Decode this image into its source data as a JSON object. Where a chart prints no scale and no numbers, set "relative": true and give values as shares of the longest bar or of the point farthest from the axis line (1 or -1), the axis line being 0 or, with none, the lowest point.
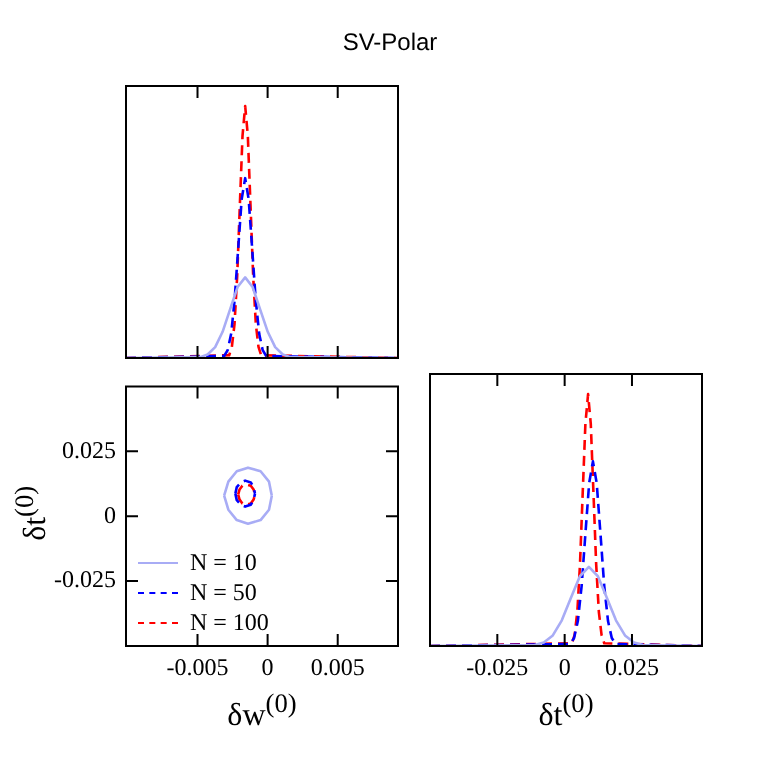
{
  "chart_data": [
    {
      "type": "line",
      "title": "SV-Polar",
      "relative": true,
      "xlim": [
        -0.0101,
        0.0093
      ],
      "xticks": [
        -0.005,
        0,
        0.005
      ],
      "tick_labels": false,
      "series": [
        {
          "color": "#a8acf5",
          "line_style": "solid",
          "x": [
            -0.0101,
            -0.00481,
            -0.00428,
            -0.00374,
            -0.00321,
            -0.00267,
            -0.00214,
            -0.0016,
            -0.00107,
            -0.00054,
            1e-05,
            0.00054,
            0.00108,
            0.00161,
            0.0093
          ],
          "values": [
            0,
            0.0035,
            0.014,
            0.043,
            0.104,
            0.194,
            0.282,
            0.32,
            0.282,
            0.194,
            0.104,
            0.043,
            0.014,
            0.0035,
            0
          ]
        },
        {
          "color": "#0000ff",
          "line_style": "dashed",
          "x": [
            -0.0101,
            -0.0031,
            -0.00285,
            -0.0026,
            -0.00235,
            -0.0021,
            -0.00185,
            -0.0016,
            -0.00135,
            -0.0011,
            -0.00085,
            -0.0006,
            -0.00035,
            -0.0001,
            0.0093
          ],
          "values": [
            0,
            0.008,
            0.031,
            0.096,
            0.232,
            0.433,
            0.63,
            0.714,
            0.63,
            0.433,
            0.232,
            0.096,
            0.031,
            0.008,
            0
          ]
        },
        {
          "color": "#ff0000",
          "line_style": "dashed",
          "x": [
            -0.0101,
            -0.00274,
            -0.00255,
            -0.00236,
            -0.00217,
            -0.00198,
            -0.00179,
            -0.0016,
            -0.00141,
            -0.00122,
            -0.00103,
            -0.00084,
            -0.00065,
            -0.00046,
            0.0093
          ],
          "values": [
            0,
            0.011,
            0.044,
            0.135,
            0.325,
            0.607,
            0.882,
            1,
            0.882,
            0.607,
            0.325,
            0.135,
            0.044,
            0.011,
            0
          ]
        }
      ]
    },
    {
      "type": "line",
      "xlabel": "δw$^{(0)}$",
      "ylabel": "δt$^{(0)}$",
      "xlim": [
        -0.0101,
        0.0093
      ],
      "xticks": [
        -0.005,
        0,
        0.005
      ],
      "ylim": [
        -0.05,
        0.05
      ],
      "yticks": [
        -0.025,
        0,
        0.025
      ],
      "legend": "bottom left",
      "series": [
        {
          "name": "N = 10",
          "color": "#a8acf5",
          "line_style": "solid",
          "x": [
            -0.0031,
            -0.0028,
            -0.0022,
            -0.0014,
            -0.0005,
            0.0001,
            0.0003,
            null,
            -0.0031,
            -0.0028,
            -0.0022,
            -0.0014,
            -0.0005,
            0.0001,
            0.0003
          ],
          "values": [
            0.0079,
            0.0133,
            0.0173,
            0.0187,
            0.0173,
            0.0133,
            0.0079,
            null,
            0.0079,
            0.0025,
            -0.0015,
            -0.0029,
            -0.0015,
            0.0025,
            0.0079
          ]
        },
        {
          "name": "N = 50",
          "color": "#0000ff",
          "line_style": "dashed",
          "x": [
            -0.0023,
            -0.0022,
            -0.0019,
            -0.0016,
            -0.0012,
            -0.001,
            -0.0009,
            null,
            -0.0023,
            -0.0022,
            -0.0019,
            -0.0016,
            -0.0012,
            -0.001,
            -0.0009
          ],
          "values": [
            0.0087,
            0.0112,
            0.013,
            0.0137,
            0.013,
            0.0112,
            0.0087,
            null,
            0.0087,
            0.0062,
            0.0044,
            0.0037,
            0.0044,
            0.0062,
            0.0087
          ]
        },
        {
          "name": "N = 100",
          "color": "#ff0000",
          "line_style": "dashed",
          "x": [
            -0.0021,
            -0.002,
            -0.0018,
            -0.0015,
            -0.0012,
            -0.001,
            -0.0009,
            null,
            -0.0021,
            -0.002,
            -0.0018,
            -0.0015,
            -0.0012,
            -0.001,
            -0.0009
          ],
          "values": [
            0.0083,
            0.0103,
            0.0117,
            0.0122,
            0.0117,
            0.0103,
            0.0083,
            null,
            0.0083,
            0.0064,
            0.0049,
            0.0044,
            0.0049,
            0.0064,
            0.0083
          ]
        }
      ]
    },
    {
      "type": "line",
      "xlabel": "δt$^{(0)}$",
      "relative": true,
      "xlim": [
        -0.05,
        0.051
      ],
      "xticks": [
        -0.025,
        0,
        0.025
      ],
      "tick_labels": "x",
      "series": [
        {
          "color": "#a8acf5",
          "line_style": "solid",
          "x": [
            -0.05,
            -0.0111,
            -0.00775,
            -0.0044,
            -0.00105,
            0.0023,
            0.00565,
            0.009,
            0.01235,
            0.0157,
            0.01905,
            0.0224,
            0.02575,
            0.0291,
            0.051
          ],
          "values": [
            0,
            0.0035,
            0.0138,
            0.042,
            0.102,
            0.191,
            0.277,
            0.314,
            0.277,
            0.191,
            0.102,
            0.042,
            0.0138,
            0.0035,
            0
          ]
        },
        {
          "color": "#0000ff",
          "line_style": "dashed",
          "x": [
            -0.05,
            0.0021,
            0.0035,
            0.0049,
            0.0063,
            0.0077,
            0.0091,
            0.0105,
            0.0119,
            0.0133,
            0.0147,
            0.0161,
            0.0175,
            0.0189,
            0.051
          ],
          "values": [
            0,
            0.008,
            0.032,
            0.099,
            0.238,
            0.445,
            0.647,
            0.733,
            0.647,
            0.445,
            0.238,
            0.099,
            0.032,
            0.008,
            0
          ]
        },
        {
          "color": "#ff0000",
          "line_style": "dashed",
          "x": [
            -0.05,
            0.0027,
            0.0037,
            0.0047,
            0.0057,
            0.0067,
            0.0077,
            0.0087,
            0.0097,
            0.0107,
            0.0117,
            0.0127,
            0.0137,
            0.0147,
            0.051
          ],
          "values": [
            0,
            0.011,
            0.044,
            0.135,
            0.325,
            0.607,
            0.882,
            1,
            0.882,
            0.607,
            0.325,
            0.135,
            0.044,
            0.011,
            0
          ]
        }
      ]
    }
  ]
}
